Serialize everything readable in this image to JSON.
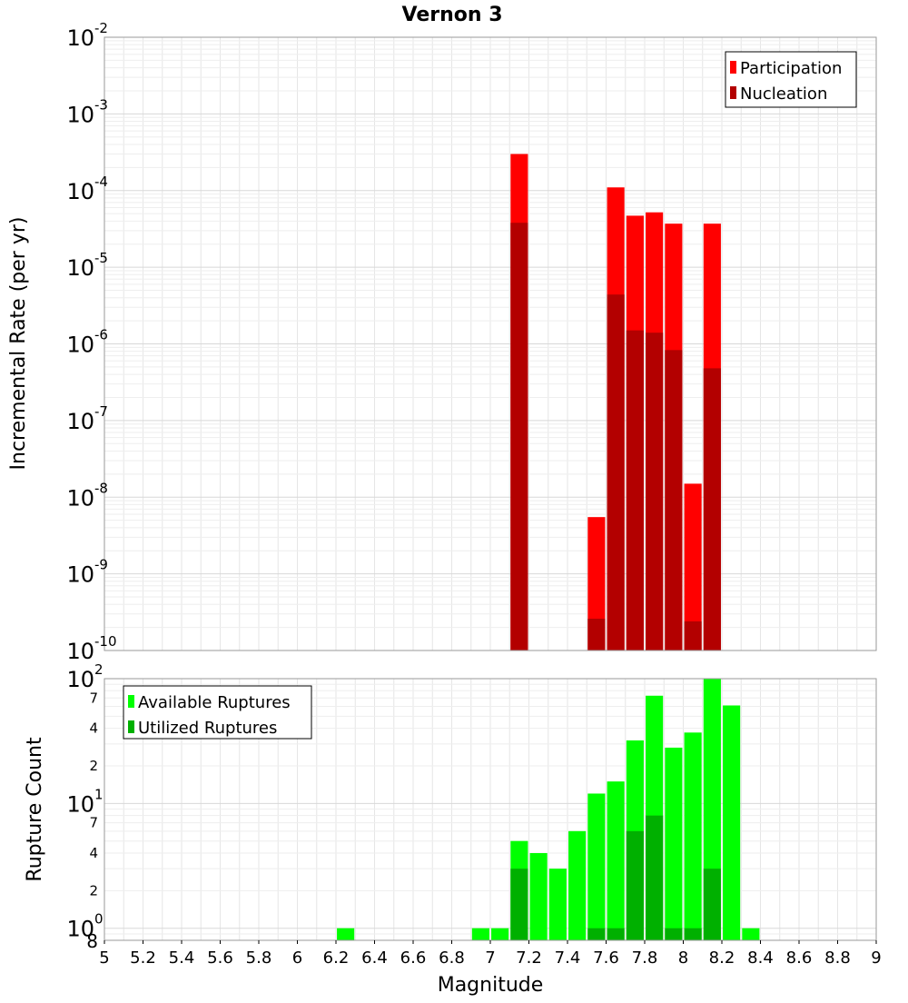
{
  "chart_data": [
    {
      "type": "bar",
      "title": "Vernon 3",
      "xlabel": "",
      "ylabel": "Incremental Rate (per yr)",
      "yscale": "log",
      "ylim": [
        1e-10,
        0.01
      ],
      "xlim": [
        5,
        9
      ],
      "y_tick_bases": [
        "10",
        "10",
        "10",
        "10",
        "10",
        "10",
        "10",
        "10",
        "10"
      ],
      "y_tick_exponents": [
        "-10",
        "-9",
        "-8",
        "-7",
        "-6",
        "-5",
        "-4",
        "-3",
        "-2"
      ],
      "grid": true,
      "legend_position": "top-right",
      "bar_width": 0.09,
      "series": [
        {
          "name": "Participation",
          "color": "#ff0000",
          "x": [
            7.15,
            7.55,
            7.65,
            7.75,
            7.85,
            7.95,
            8.05,
            8.15
          ],
          "values": [
            0.0003,
            5.5e-09,
            0.00011,
            4.7e-05,
            5.2e-05,
            3.7e-05,
            1.5e-08,
            3.7e-05
          ]
        },
        {
          "name": "Nucleation",
          "color": "#b30000",
          "x": [
            7.15,
            7.55,
            7.65,
            7.75,
            7.85,
            7.95,
            8.05,
            8.15
          ],
          "values": [
            3.8e-05,
            2.6e-10,
            4.4e-06,
            1.5e-06,
            1.4e-06,
            8.3e-07,
            2.4e-10,
            4.8e-07
          ]
        }
      ]
    },
    {
      "type": "bar",
      "title": "",
      "xlabel": "Magnitude",
      "ylabel": "Rupture Count",
      "yscale": "log",
      "ylim": [
        0.8,
        100
      ],
      "xlim": [
        5,
        9
      ],
      "x_ticks": [
        "5",
        "5.2",
        "5.4",
        "5.6",
        "5.8",
        "6",
        "6.2",
        "6.4",
        "6.6",
        "6.8",
        "7",
        "7.2",
        "7.4",
        "7.6",
        "7.8",
        "8",
        "8.2",
        "8.4",
        "8.6",
        "8.8",
        "9"
      ],
      "y_major_labels": [
        {
          "value": 1,
          "base": "10",
          "exp": "0"
        },
        {
          "value": 10,
          "base": "10",
          "exp": "1"
        },
        {
          "value": 100,
          "base": "10",
          "exp": "2"
        }
      ],
      "y_minor_labels": [
        {
          "value": 0.8,
          "label": "8"
        },
        {
          "value": 2,
          "label": "2"
        },
        {
          "value": 4,
          "label": "4"
        },
        {
          "value": 7,
          "label": "7"
        },
        {
          "value": 20,
          "label": "2"
        },
        {
          "value": 40,
          "label": "4"
        },
        {
          "value": 70,
          "label": "7"
        }
      ],
      "grid": true,
      "legend_position": "top-left",
      "bar_width": 0.09,
      "series": [
        {
          "name": "Available Ruptures",
          "color": "#00ff00",
          "x": [
            6.25,
            6.95,
            7.05,
            7.15,
            7.25,
            7.35,
            7.45,
            7.55,
            7.65,
            7.75,
            7.85,
            7.95,
            8.05,
            8.15,
            8.25,
            8.35
          ],
          "values": [
            1,
            1,
            1,
            5,
            4,
            3,
            6,
            12,
            15,
            32,
            73,
            28,
            37,
            110,
            61,
            1
          ]
        },
        {
          "name": "Utilized Ruptures",
          "color": "#00b000",
          "x": [
            7.15,
            7.55,
            7.65,
            7.75,
            7.85,
            7.95,
            8.05,
            8.15
          ],
          "values": [
            3,
            1,
            1,
            6,
            8,
            1,
            1,
            3
          ]
        }
      ]
    }
  ]
}
